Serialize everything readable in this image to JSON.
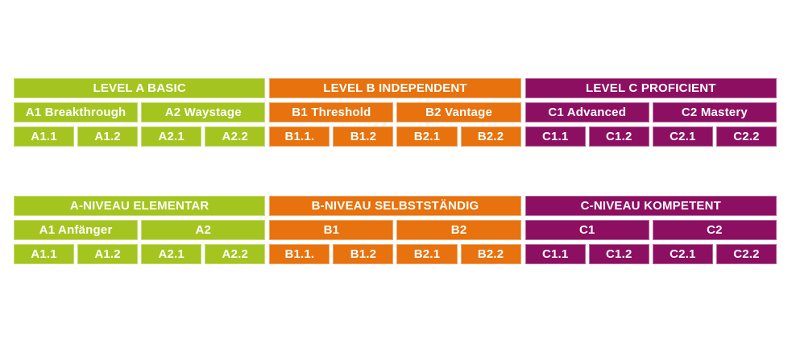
{
  "colors": {
    "green": "#a4c520",
    "orange": "#e7720e",
    "purple": "#8d0f62",
    "text": "#ffffff",
    "background": "#ffffff"
  },
  "tables": [
    {
      "name": "english",
      "sections": [
        {
          "color": "green",
          "header": "LEVEL A BASIC",
          "sublevels": [
            "A1 Breakthrough",
            "A2 Waystage"
          ],
          "units": [
            "A1.1",
            "A1.2",
            "A2.1",
            "A2.2"
          ]
        },
        {
          "color": "orange",
          "header": "LEVEL B INDEPENDENT",
          "sublevels": [
            "B1 Threshold",
            "B2 Vantage"
          ],
          "units": [
            "B1.1.",
            "B1.2",
            "B2.1",
            "B2.2"
          ]
        },
        {
          "color": "purple",
          "header": "LEVEL C PROFICIENT",
          "sublevels": [
            "C1 Advanced",
            "C2 Mastery"
          ],
          "units": [
            "C1.1",
            "C1.2",
            "C2.1",
            "C2.2"
          ]
        }
      ]
    },
    {
      "name": "german",
      "sections": [
        {
          "color": "green",
          "header": "A-NIVEAU ELEMENTAR",
          "sublevels": [
            "A1 Anfänger",
            "A2"
          ],
          "units": [
            "A1.1",
            "A1.2",
            "A2.1",
            "A2.2"
          ]
        },
        {
          "color": "orange",
          "header": "B-NIVEAU SELBSTSTÄNDIG",
          "sublevels": [
            "B1",
            "B2"
          ],
          "units": [
            "B1.1.",
            "B1.2",
            "B2.1",
            "B2.2"
          ]
        },
        {
          "color": "purple",
          "header": "C-NIVEAU KOMPETENT",
          "sublevels": [
            "C1",
            "C2"
          ],
          "units": [
            "C1.1",
            "C1.2",
            "C2.1",
            "C2.2"
          ]
        }
      ]
    }
  ]
}
